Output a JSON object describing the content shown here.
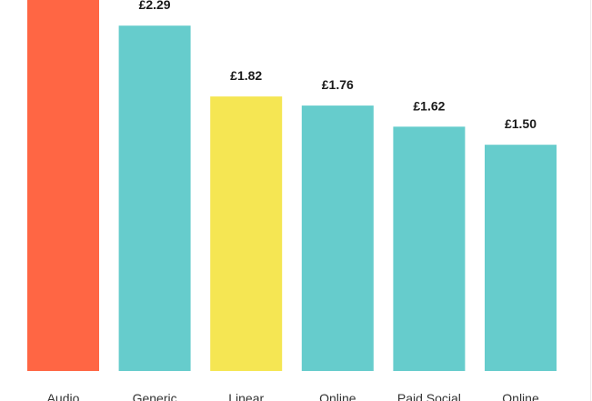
{
  "chart_data": {
    "type": "bar",
    "categories": [
      "Audio",
      "Generic",
      "Linear",
      "Online",
      "Paid Social",
      "Online"
    ],
    "values": [
      null,
      2.29,
      1.82,
      1.76,
      1.62,
      1.5
    ],
    "value_labels": [
      "",
      "£2.29",
      "£1.82",
      "£1.76",
      "£1.62",
      "£1.50"
    ],
    "colors": [
      "#ff6644",
      "#66cccc",
      "#f5e653",
      "#66cccc",
      "#66cccc",
      "#66cccc"
    ],
    "ylim": [
      0,
      2.46
    ],
    "grid": false,
    "legend": "none"
  }
}
